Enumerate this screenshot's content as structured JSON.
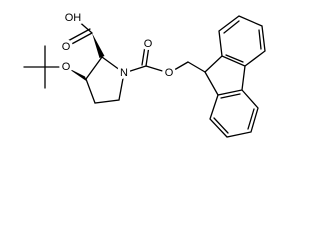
{
  "labels": [
    "OH",
    "O",
    "O",
    "N",
    "O",
    "O"
  ]
}
